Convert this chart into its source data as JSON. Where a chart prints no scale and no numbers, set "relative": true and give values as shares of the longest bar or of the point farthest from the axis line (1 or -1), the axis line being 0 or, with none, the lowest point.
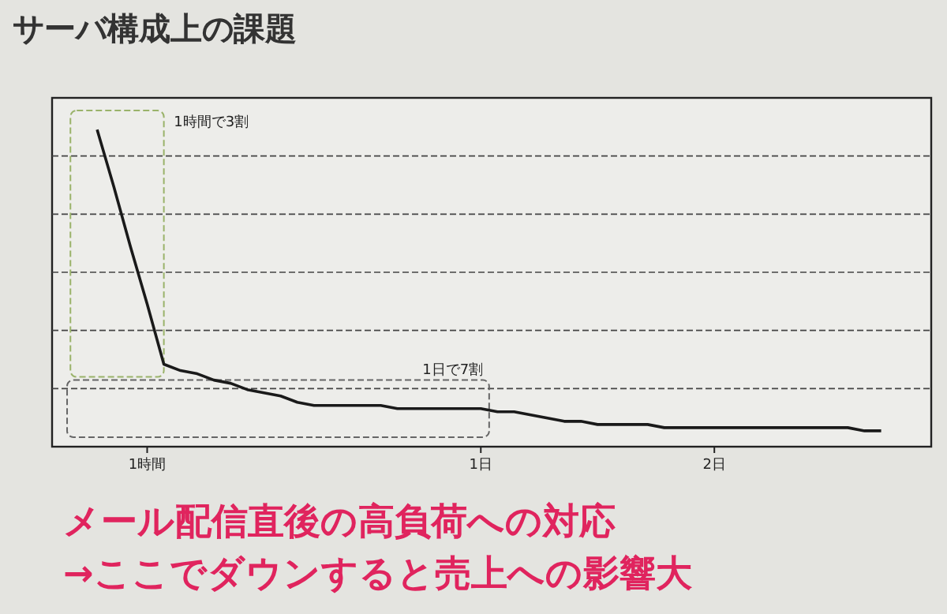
{
  "chart_data": {
    "type": "line",
    "title": "サーバ構成上の課題",
    "relative": true,
    "grid": "y",
    "line_style": "solid",
    "categories": [
      null,
      null,
      null,
      "1時間",
      null,
      null,
      null,
      null,
      null,
      null,
      null,
      null,
      null,
      null,
      null,
      null,
      null,
      null,
      null,
      null,
      null,
      null,
      null,
      "1日",
      null,
      null,
      null,
      null,
      null,
      null,
      null,
      null,
      null,
      null,
      null,
      null,
      null,
      "2日",
      null,
      null,
      null,
      null,
      null,
      null,
      null,
      null,
      null,
      null
    ],
    "series": [
      {
        "color": "#1a1a1a",
        "values": [
          1,
          0.82,
          0.63,
          0.45,
          0.26,
          0.24,
          0.23,
          0.21,
          0.2,
          0.18,
          0.17,
          0.16,
          0.14,
          0.13,
          0.13,
          0.13,
          0.13,
          0.13,
          0.12,
          0.12,
          0.12,
          0.12,
          0.12,
          0.12,
          0.11,
          0.11,
          0.1,
          0.09,
          0.08,
          0.08,
          0.07,
          0.07,
          0.07,
          0.07,
          0.06,
          0.06,
          0.06,
          0.06,
          0.06,
          0.06,
          0.06,
          0.06,
          0.06,
          0.06,
          0.06,
          0.06,
          0.05,
          0.05
        ]
      }
    ],
    "annotations": [
      "1時間で3割",
      "1日で7割",
      "メール配信直後の高負荷への対応",
      "→ここでダウンすると売上への影響大"
    ]
  }
}
